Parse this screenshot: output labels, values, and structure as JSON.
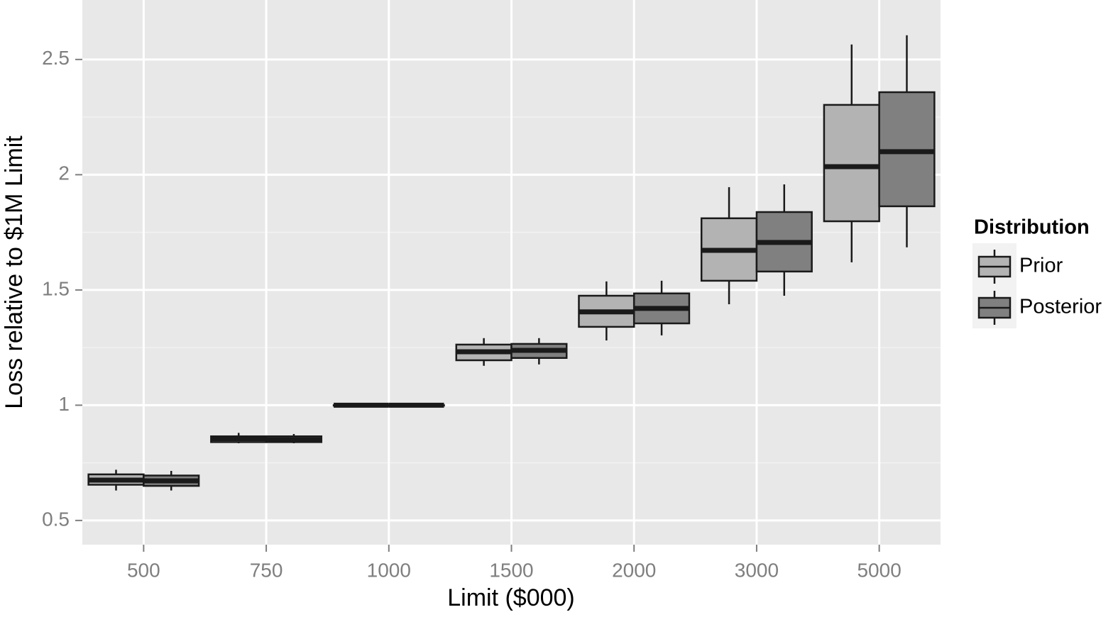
{
  "chart_data": {
    "type": "boxplot",
    "x_label": "Limit ($000)",
    "y_label": "Loss relative to $1M Limit",
    "categories": [
      "500",
      "750",
      "1000",
      "1500",
      "2000",
      "3000",
      "5000"
    ],
    "legend_title": "Distribution",
    "legend_position": "right",
    "grid": true,
    "ylim": [
      0.395,
      2.758
    ],
    "yticks": [
      0.5,
      1.0,
      1.5,
      2.0,
      2.5
    ],
    "series": [
      {
        "name": "Prior",
        "color": "#b3b3b3",
        "min": [
          0.63,
          0.835,
          1.0,
          1.171,
          1.281,
          1.438,
          1.62
        ],
        "q1": [
          0.655,
          0.84,
          1.0,
          1.195,
          1.34,
          1.54,
          1.798
        ],
        "median": [
          0.675,
          0.855,
          1.0,
          1.232,
          1.405,
          1.672,
          2.035
        ],
        "q3": [
          0.7,
          0.865,
          1.0,
          1.263,
          1.475,
          1.811,
          2.303
        ],
        "max": [
          0.72,
          0.88,
          1.0,
          1.291,
          1.537,
          1.946,
          2.565
        ]
      },
      {
        "name": "Posterior",
        "color": "#808080",
        "min": [
          0.63,
          0.835,
          1.0,
          1.177,
          1.303,
          1.475,
          1.685
        ],
        "q1": [
          0.65,
          0.84,
          1.0,
          1.205,
          1.355,
          1.58,
          1.863
        ],
        "median": [
          0.672,
          0.85,
          1.0,
          1.238,
          1.42,
          1.706,
          2.1
        ],
        "q3": [
          0.695,
          0.865,
          1.0,
          1.266,
          1.485,
          1.838,
          2.358
        ],
        "max": [
          0.715,
          0.875,
          1.0,
          1.291,
          1.54,
          1.958,
          2.605
        ]
      }
    ]
  }
}
